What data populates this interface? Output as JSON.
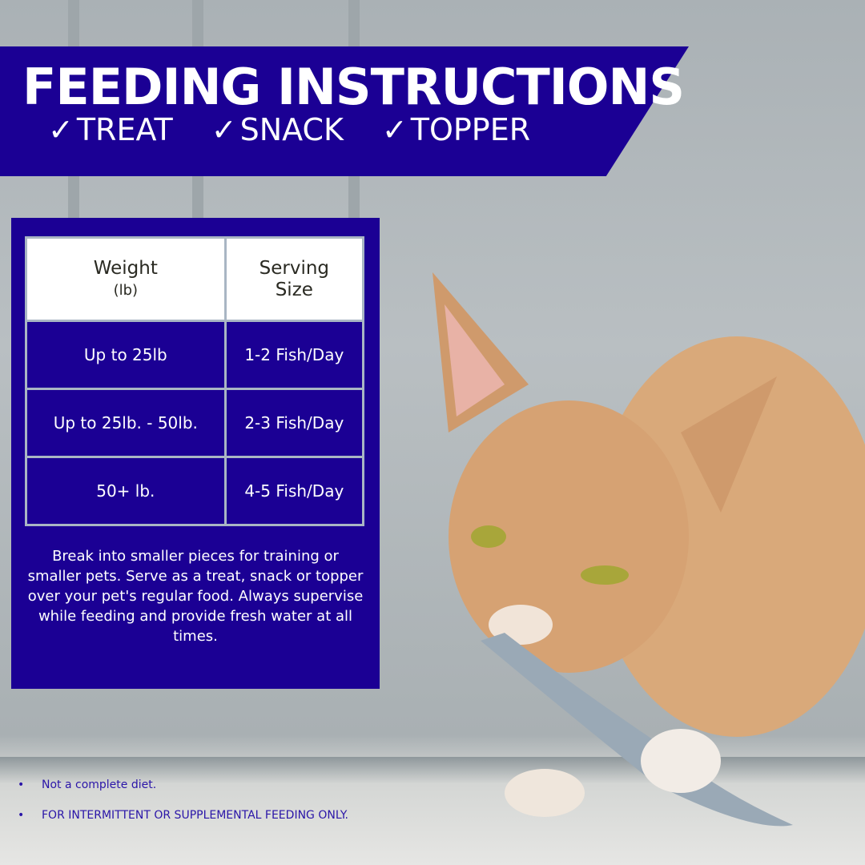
{
  "header": {
    "title": "FEEDING INSTRUCTIONS",
    "checks": [
      {
        "icon": "checkmark-icon",
        "label": "TREAT"
      },
      {
        "icon": "checkmark-icon",
        "label": "SNACK"
      },
      {
        "icon": "checkmark-icon",
        "label": "TOPPER"
      }
    ]
  },
  "table": {
    "headers": [
      {
        "line1": "Weight",
        "line2": "(lb)"
      },
      {
        "line1": "Serving",
        "line2": "Size"
      }
    ],
    "rows": [
      [
        "Up to 25lb",
        "1-2 Fish/Day"
      ],
      [
        "Up to 25lb. - 50lb.",
        "2-3 Fish/Day"
      ],
      [
        "50+ lb.",
        "4-5 Fish/Day"
      ]
    ]
  },
  "note": "Break into smaller pieces for training or smaller pets. Serve as a treat, snack or topper over your pet's regular food. Always supervise while feeding and provide fresh water at all times.",
  "bullets": [
    "Not a complete diet.",
    "FOR INTERMITTENT OR SUPPLEMENTAL FEEDING ONLY."
  ],
  "colors": {
    "brand": "#1b0094",
    "header_bg": "#ffffff",
    "border": "#a9b6c4"
  }
}
